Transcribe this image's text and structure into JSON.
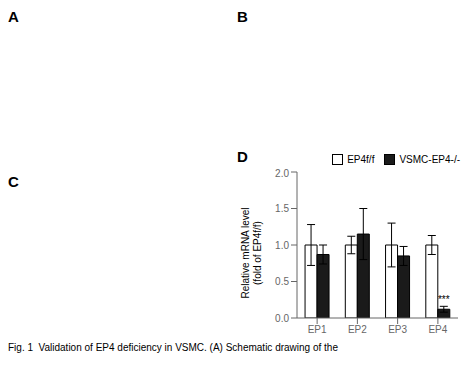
{
  "panel_labels": [
    "A",
    "B",
    "C",
    "D"
  ],
  "caption": "Fig. 1  Validation of EP4 deficiency in VSMC. (A) Schematic drawing of the",
  "chart_data": {
    "type": "bar",
    "categories": [
      "EP1",
      "EP2",
      "EP3",
      "EP4"
    ],
    "series": [
      {
        "name": "EP4f/f",
        "color": "#ffffff",
        "values": [
          1.0,
          1.0,
          1.0,
          1.0
        ],
        "errors": [
          0.28,
          0.12,
          0.3,
          0.13
        ]
      },
      {
        "name": "VSMC-EP4-/-",
        "color": "#1a1a1a",
        "values": [
          0.87,
          1.15,
          0.85,
          0.12
        ],
        "errors": [
          0.13,
          0.35,
          0.13,
          0.04
        ]
      }
    ],
    "y_label": "Relative mRNA level\n(fold of EP4f/f)",
    "ylim": [
      0,
      2.0
    ],
    "yticks": [
      {
        "value": 0.0,
        "label": "0.0"
      },
      {
        "value": 0.5,
        "label": "0.5"
      },
      {
        "value": 1.0,
        "label": "1.0"
      },
      {
        "value": 1.5,
        "label": "1.5"
      },
      {
        "value": 2.0,
        "label": "2.0"
      }
    ],
    "legend": "upper right",
    "annotations": [
      {
        "text": "***",
        "category": "EP4",
        "series": "VSMC-EP4-/-"
      }
    ]
  }
}
